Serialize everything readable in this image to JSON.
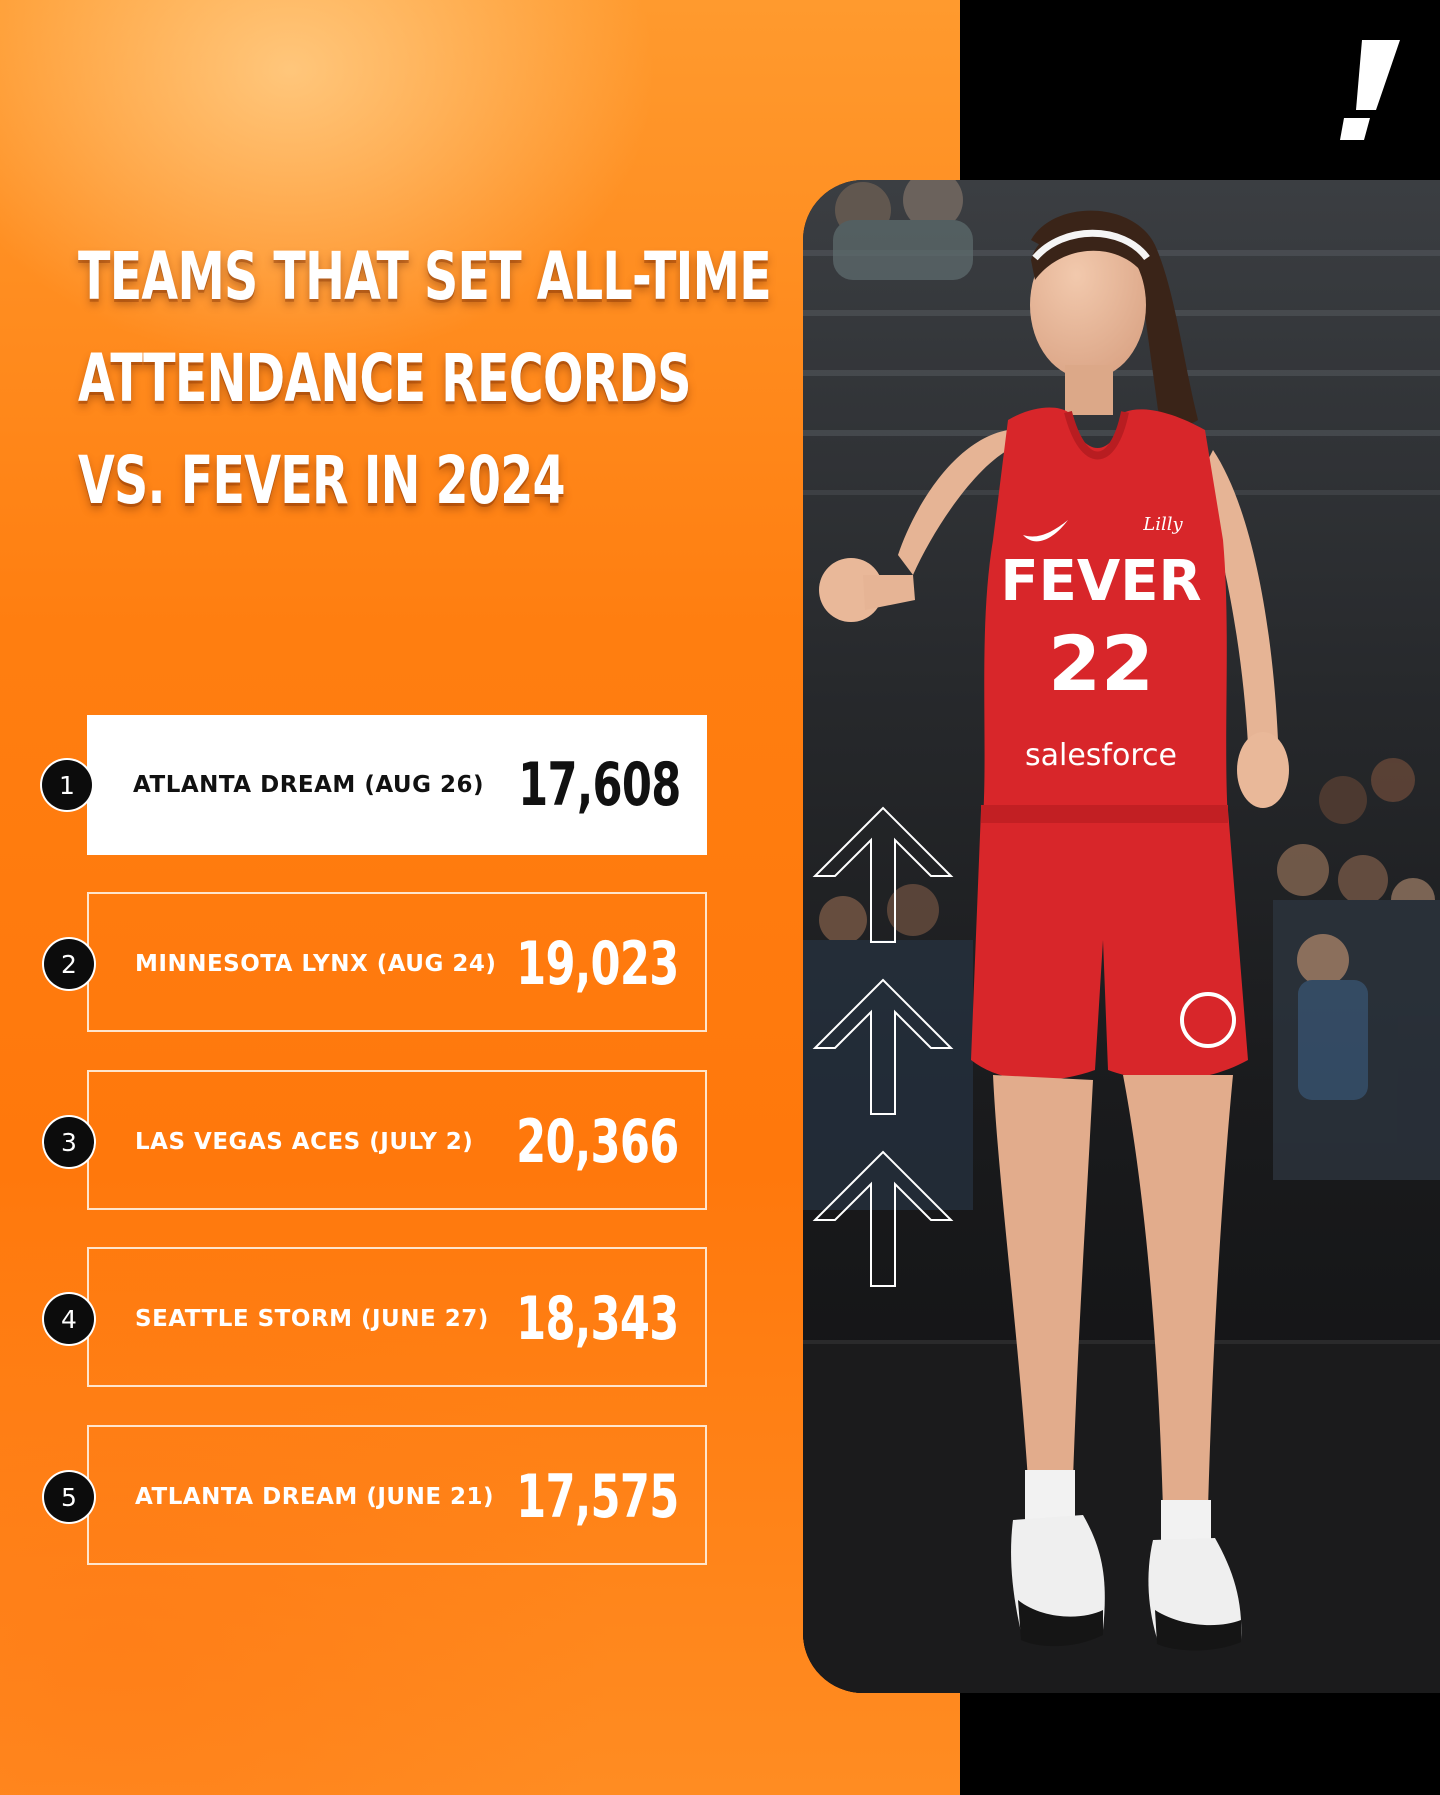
{
  "title": {
    "line1": "TEAMS THAT SET ALL-TIME",
    "line2": "ATTENDANCE RECORDS",
    "line3": "VS. FEVER IN 2024"
  },
  "records": [
    {
      "rank": "1",
      "team": "ATLANTA DREAM (AUG 26)",
      "attendance": "17,608",
      "highlighted": true
    },
    {
      "rank": "2",
      "team": "MINNESOTA LYNX (AUG 24)",
      "attendance": "19,023",
      "highlighted": false
    },
    {
      "rank": "3",
      "team": "LAS VEGAS ACES (JULY 2)",
      "attendance": "20,366",
      "highlighted": false
    },
    {
      "rank": "4",
      "team": "SEATTLE STORM (JUNE 27)",
      "attendance": "18,343",
      "highlighted": false
    },
    {
      "rank": "5",
      "team": "ATLANTA DREAM (JUNE 21)",
      "attendance": "17,575",
      "highlighted": false
    }
  ],
  "jersey": {
    "team_name": "FEVER",
    "number": "22",
    "sponsor": "salesforce",
    "chest_logo": "Lilly",
    "brand_icon": "swoosh-icon"
  },
  "logo": {
    "icon": "exclamation-logo-icon"
  },
  "colors": {
    "background_orange": "#ff7e10",
    "panel_black": "#000000",
    "jersey_red": "#d8262a",
    "highlight_row": "#ffffff"
  }
}
